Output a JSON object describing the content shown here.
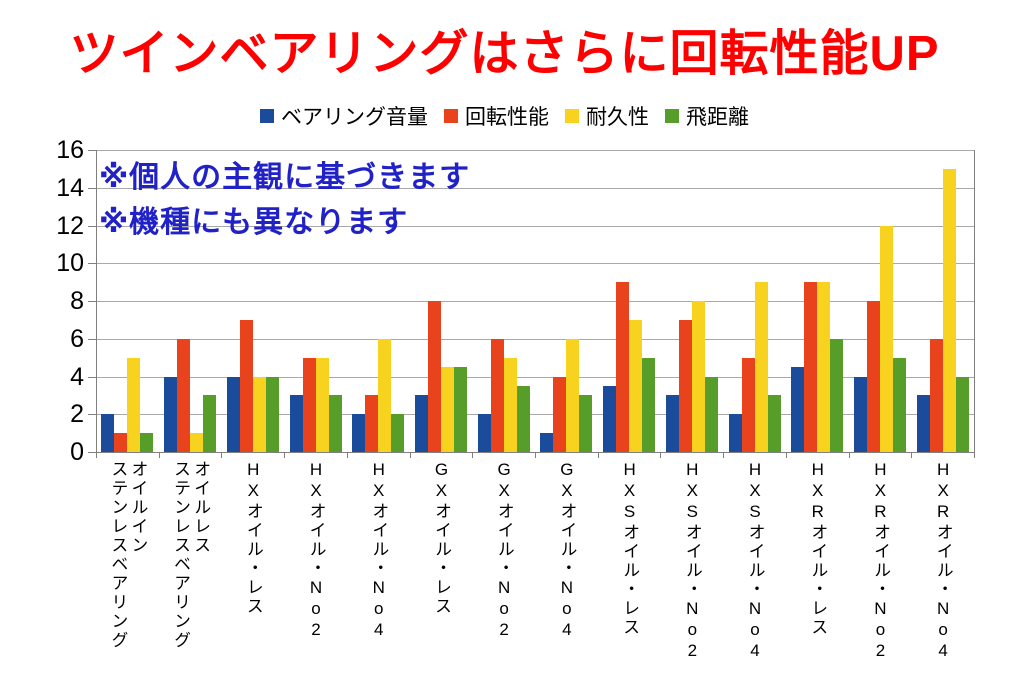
{
  "title": "ツインベアリングはさらに回転性能UP",
  "title_color": "#ff0000",
  "annotations": {
    "line1": "※個人の主観に基づきます",
    "line2": "※機種にも異なります",
    "color": "#2121c8"
  },
  "chart_data": {
    "type": "bar",
    "title": "ツインベアリングはさらに回転性能UP",
    "xlabel": "",
    "ylabel": "",
    "ylim": [
      0,
      16
    ],
    "ytick_step": 2,
    "grid": true,
    "legend_position": "top",
    "categories": [
      "オイルインステンレスベアリング",
      "オイルレスステンレスベアリング",
      "HXオイル・レス",
      "HXオイル・No2",
      "HXオイル・No4",
      "GXオイル・レス",
      "GXオイル・No2",
      "GXオイル・No4",
      "HXSオイル・レス",
      "HXSオイル・No2",
      "HXSオイル・No4",
      "HXRオイル・レス",
      "HXRオイル・No2",
      "HXRオイル・No4"
    ],
    "category_lines": [
      [
        "オイルイン",
        "ステンレスベアリング"
      ],
      [
        "オイルレス",
        "ステンレスベアリング"
      ],
      [
        "HXオイル・レス"
      ],
      [
        "HXオイル・No2"
      ],
      [
        "HXオイル・No4"
      ],
      [
        "GXオイル・レス"
      ],
      [
        "GXオイル・No2"
      ],
      [
        "GXオイル・No4"
      ],
      [
        "HXSオイル・レス"
      ],
      [
        "HXSオイル・No2"
      ],
      [
        "HXSオイル・No4"
      ],
      [
        "HXRオイル・レス"
      ],
      [
        "HXRオイル・No2"
      ],
      [
        "HXRオイル・No4"
      ]
    ],
    "series": [
      {
        "name": "ベアリング音量",
        "color": "#1b4c9b",
        "values": [
          2,
          4,
          4,
          3,
          2,
          3,
          2,
          1,
          3.5,
          3,
          2,
          4.5,
          4,
          3
        ]
      },
      {
        "name": "回転性能",
        "color": "#e8431c",
        "values": [
          1,
          6,
          7,
          5,
          3,
          8,
          6,
          4,
          9,
          7,
          5,
          9,
          8,
          6
        ]
      },
      {
        "name": "耐久性",
        "color": "#f7d31f",
        "values": [
          5,
          1,
          4,
          5,
          6,
          4.5,
          5,
          6,
          7,
          8,
          9,
          9,
          12,
          15
        ]
      },
      {
        "name": "飛距離",
        "color": "#579d29",
        "values": [
          1,
          3,
          4,
          3,
          2,
          4.5,
          3.5,
          3,
          5,
          4,
          3,
          6,
          5,
          4
        ]
      }
    ]
  },
  "axis": {
    "ytick_labels": [
      "0",
      "2",
      "4",
      "6",
      "8",
      "10",
      "12",
      "14",
      "16"
    ],
    "grid_color": "#a9a9a9",
    "axis_color": "#7f7f7f"
  }
}
